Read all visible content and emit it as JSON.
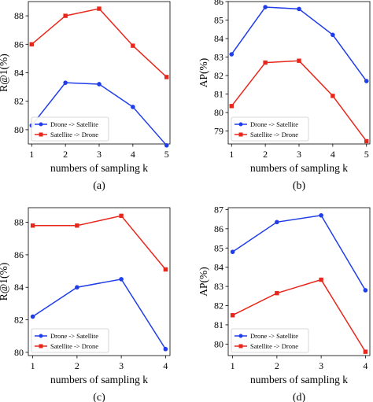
{
  "colors": {
    "series1": "#1f3de8",
    "series2": "#e8271c",
    "axis": "#000000"
  },
  "chart_data": [
    {
      "type": "line",
      "caption": "(a)",
      "xlabel": "numbers of sampling k",
      "ylabel": "R@1(%)",
      "x": [
        1,
        2,
        3,
        4,
        5
      ],
      "xticks": [
        "1",
        "2",
        "3",
        "4",
        "5"
      ],
      "xlim": [
        0.9,
        5.1
      ],
      "ylim": [
        79.0,
        89.0
      ],
      "yticks": [
        80,
        82,
        84,
        86,
        88
      ],
      "legend_position": "bottom-left",
      "series": [
        {
          "name": "Drone -> Satellite",
          "marker": "circle",
          "color": "#1f3de8",
          "values": [
            80.3,
            83.3,
            83.2,
            81.6,
            78.9
          ]
        },
        {
          "name": "Satellite -> Drone",
          "marker": "square",
          "color": "#e8271c",
          "values": [
            86.0,
            88.0,
            88.5,
            85.9,
            83.7
          ]
        }
      ]
    },
    {
      "type": "line",
      "caption": "(b)",
      "xlabel": "numbers of sampling k",
      "ylabel": "AP(%)",
      "x": [
        1,
        2,
        3,
        4,
        5
      ],
      "xticks": [
        "1",
        "2",
        "3",
        "4",
        "5"
      ],
      "xlim": [
        0.9,
        5.1
      ],
      "ylim": [
        78.3,
        86.0
      ],
      "yticks": [
        79,
        80,
        81,
        82,
        83,
        84,
        85,
        86
      ],
      "legend_position": "bottom-left",
      "series": [
        {
          "name": "Drone -> Satellite",
          "marker": "circle",
          "color": "#1f3de8",
          "values": [
            83.15,
            85.7,
            85.6,
            84.2,
            81.7
          ]
        },
        {
          "name": "Satellite -> Drone",
          "marker": "square",
          "color": "#e8271c",
          "values": [
            80.35,
            82.7,
            82.8,
            80.9,
            78.45
          ]
        }
      ]
    },
    {
      "type": "line",
      "caption": "(c)",
      "xlabel": "numbers of sampling k",
      "ylabel": "R@1(%)",
      "x": [
        1,
        2,
        3,
        4
      ],
      "xticks": [
        "1",
        "2",
        "3",
        "4"
      ],
      "xlim": [
        0.9,
        4.1
      ],
      "ylim": [
        79.8,
        88.9
      ],
      "yticks": [
        80,
        82,
        84,
        86,
        88
      ],
      "legend_position": "bottom-left",
      "series": [
        {
          "name": "Drone -> Satellite",
          "marker": "circle",
          "color": "#1f3de8",
          "values": [
            82.2,
            84.0,
            84.5,
            80.2
          ]
        },
        {
          "name": "Satellite -> Drone",
          "marker": "square",
          "color": "#e8271c",
          "values": [
            87.8,
            87.8,
            88.4,
            85.1
          ]
        }
      ]
    },
    {
      "type": "line",
      "caption": "(d)",
      "xlabel": "numbers of sampling k",
      "ylabel": "AP(%)",
      "x": [
        1,
        2,
        3,
        4
      ],
      "xticks": [
        "1",
        "2",
        "3",
        "4"
      ],
      "xlim": [
        0.9,
        4.1
      ],
      "ylim": [
        79.4,
        87.1
      ],
      "yticks": [
        80,
        81,
        82,
        83,
        84,
        85,
        86,
        87
      ],
      "legend_position": "bottom-left",
      "series": [
        {
          "name": "Drone -> Satellite",
          "marker": "circle",
          "color": "#1f3de8",
          "values": [
            84.8,
            86.35,
            86.7,
            82.8
          ]
        },
        {
          "name": "Satellite -> Drone",
          "marker": "square",
          "color": "#e8271c",
          "values": [
            81.5,
            82.65,
            83.35,
            79.6
          ]
        }
      ]
    }
  ]
}
